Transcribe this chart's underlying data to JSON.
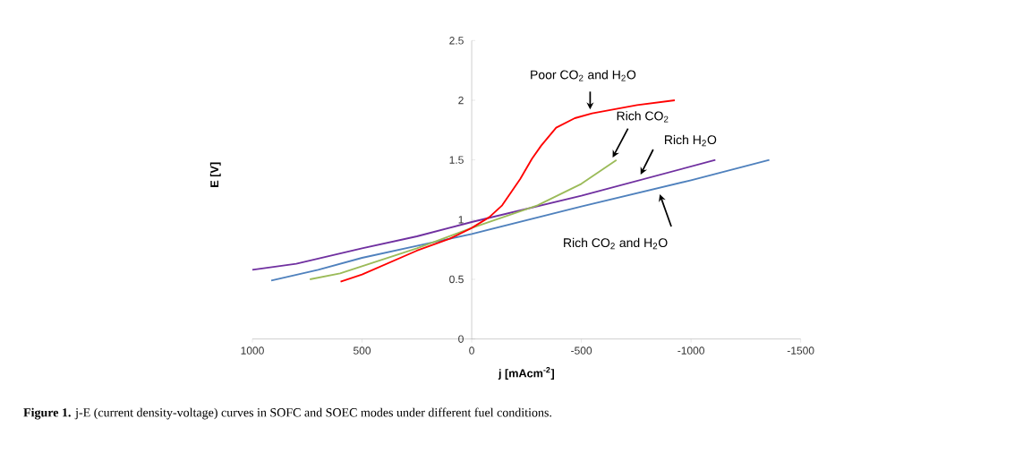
{
  "chart_data": {
    "type": "line",
    "xlabel": "j [mAcm$^{-2}$]",
    "ylabel": "**E [V]**",
    "xlim": [
      1000,
      -1500
    ],
    "xticks": [
      1000,
      500,
      0,
      -500,
      -1000,
      -1500
    ],
    "ylim": [
      0,
      2.5
    ],
    "yticks": [
      0,
      0.5,
      1,
      1.5,
      2,
      2.5
    ],
    "grid": false,
    "marker": "none",
    "line_style": "solid",
    "series": [
      {
        "color": "#7030a0",
        "x": [
          1000,
          800,
          500,
          250,
          0,
          -500,
          -1111
        ],
        "values": [
          0.58,
          0.63,
          0.76,
          0.86,
          0.98,
          1.2,
          1.5
        ]
      },
      {
        "color": "#4f81bd",
        "x": [
          914,
          700,
          500,
          250,
          0,
          -500,
          -1000,
          -1357
        ],
        "values": [
          0.49,
          0.58,
          0.68,
          0.78,
          0.88,
          1.11,
          1.33,
          1.5
        ]
      },
      {
        "color": "#9bbb59",
        "x": [
          738,
          600,
          500,
          250,
          0,
          -300,
          -500,
          -660
        ],
        "values": [
          0.5,
          0.55,
          0.61,
          0.76,
          0.93,
          1.12,
          1.3,
          1.5
        ]
      },
      {
        "color": "#ff0000",
        "x": [
          598,
          500,
          250,
          100,
          0,
          -80,
          -139,
          -221,
          -275,
          -317,
          -385,
          -470,
          -549,
          -754,
          -926
        ],
        "values": [
          0.48,
          0.54,
          0.74,
          0.84,
          0.93,
          1.02,
          1.12,
          1.34,
          1.51,
          1.62,
          1.77,
          1.85,
          1.89,
          1.96,
          2.0
        ]
      }
    ],
    "annotations": [
      "Poor CO$_{2}$ and H$_{2}$O",
      "Rich CO$_{2}$",
      "Rich H$_{2}$O",
      "Rich CO$_{2}$ and H$_{2}$O",
      "**Figure 1.** j-E (current density-voltage) curves in SOFC and SOEC modes under different fuel conditions."
    ]
  }
}
